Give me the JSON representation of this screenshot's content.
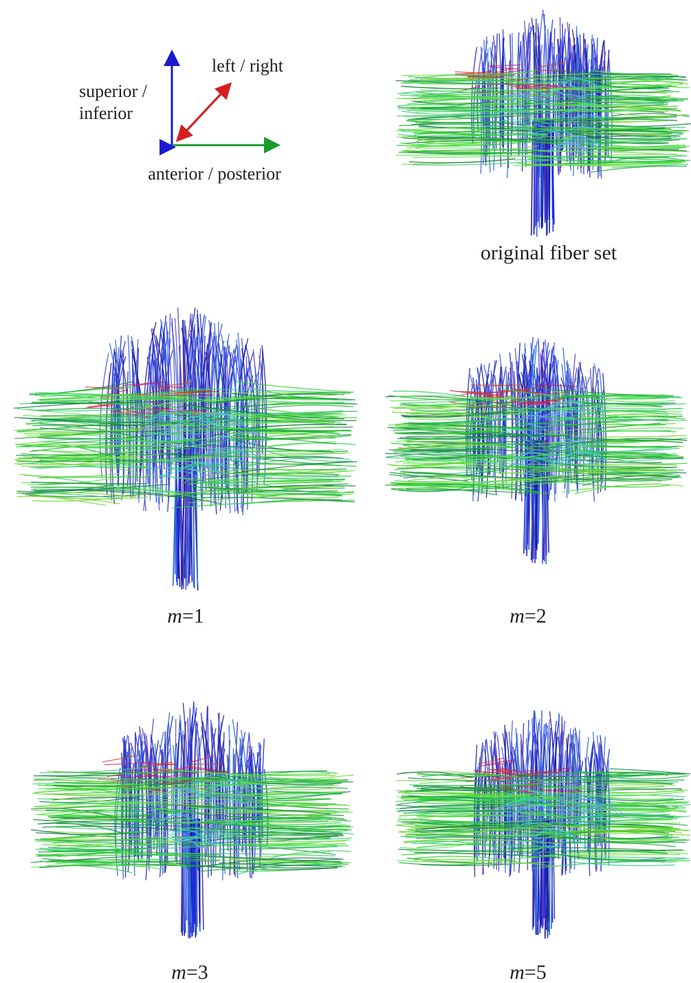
{
  "legend": {
    "vertical_label_line1": "superior /",
    "vertical_label_line2": "inferior",
    "diagonal_label": "left / right",
    "horizontal_label": "anterior / posterior"
  },
  "panels": [
    {
      "caption": "original fiber set"
    },
    {
      "caption_symbol": "m",
      "caption_value": "=1"
    },
    {
      "caption_symbol": "m",
      "caption_value": "=2"
    },
    {
      "caption_symbol": "m",
      "caption_value": "=3"
    },
    {
      "caption_symbol": "m",
      "caption_value": "=5"
    }
  ]
}
